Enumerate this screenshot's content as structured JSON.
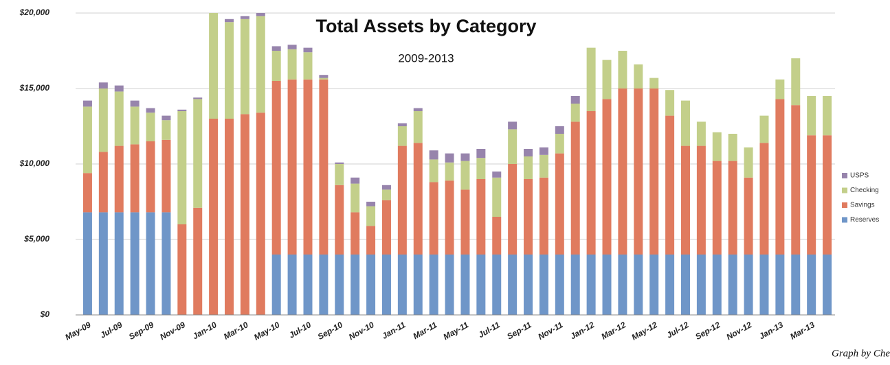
{
  "chart_data": {
    "type": "stacked_bar",
    "title": "Total Assets by Category",
    "subtitle": "2009-2013",
    "credit": "Graph by Che",
    "categories": [
      "May-09",
      null,
      "Jul-09",
      null,
      "Sep-09",
      null,
      "Nov-09",
      null,
      "Jan-10",
      null,
      "Mar-10",
      null,
      "May-10",
      null,
      "Jul-10",
      null,
      "Sep-10",
      null,
      "Nov-10",
      null,
      "Jan-11",
      null,
      "Mar-11",
      null,
      "May-11",
      null,
      "Jul-11",
      null,
      "Sep-11",
      null,
      "Nov-11",
      null,
      "Jan-12",
      null,
      "Mar-12",
      null,
      "May-12",
      null,
      "Jul-12",
      null,
      "Sep-12",
      null,
      "Nov-12",
      null,
      "Jan-13",
      null,
      "Mar-13",
      null
    ],
    "series": [
      {
        "name": "Reserves",
        "color": "#6f96c8",
        "values": [
          6800,
          6800,
          6800,
          6800,
          6800,
          6800,
          0,
          0,
          0,
          0,
          0,
          0,
          4000,
          4000,
          4000,
          4000,
          4000,
          4000,
          4000,
          4000,
          4000,
          4000,
          4000,
          4000,
          4000,
          4000,
          4000,
          4000,
          4000,
          4000,
          4000,
          4000,
          4000,
          4000,
          4000,
          4000,
          4000,
          4000,
          4000,
          4000,
          4000,
          4000,
          4000,
          4000,
          4000,
          4000,
          4000,
          4000
        ]
      },
      {
        "name": "Savings",
        "color": "#e07b5f",
        "values": [
          2600,
          4000,
          4400,
          4500,
          4700,
          4800,
          6000,
          7100,
          13000,
          13000,
          13300,
          13400,
          11500,
          11600,
          11600,
          11600,
          4600,
          2800,
          1900,
          3600,
          7200,
          7400,
          4800,
          4900,
          4300,
          5000,
          2500,
          6000,
          5000,
          5100,
          6700,
          8800,
          9500,
          10300,
          11000,
          11000,
          11000,
          9200,
          7200,
          7200,
          6200,
          6200,
          5100,
          7400,
          10300,
          9900,
          7900,
          7900
        ]
      },
      {
        "name": "Checking",
        "color": "#c3cf8a",
        "values": [
          4400,
          4200,
          3600,
          2500,
          1900,
          1300,
          7500,
          7200,
          7000,
          6400,
          6300,
          6400,
          2000,
          2000,
          1800,
          100,
          1400,
          1900,
          1300,
          700,
          1300,
          2100,
          1500,
          1200,
          1900,
          1400,
          2600,
          2300,
          1500,
          1500,
          1300,
          1200,
          4200,
          2600,
          2500,
          1600,
          700,
          1700,
          3000,
          1600,
          1900,
          1800,
          2000,
          1800,
          1300,
          3100,
          2600,
          2600
        ]
      },
      {
        "name": "USPS",
        "color": "#9784ac",
        "values": [
          400,
          400,
          400,
          400,
          300,
          300,
          100,
          100,
          0,
          200,
          200,
          200,
          300,
          300,
          300,
          200,
          100,
          400,
          300,
          300,
          200,
          200,
          600,
          600,
          500,
          600,
          400,
          500,
          500,
          500,
          500,
          500,
          0,
          0,
          0,
          0,
          0,
          0,
          0,
          0,
          0,
          0,
          0,
          0,
          0,
          0,
          0,
          0
        ]
      }
    ],
    "ylim": [
      0,
      20000
    ],
    "yticks": [
      {
        "value": 0,
        "label": "$0"
      },
      {
        "value": 5000,
        "label": "$5,000"
      },
      {
        "value": 10000,
        "label": "$10,000"
      },
      {
        "value": 15000,
        "label": "$15,000"
      },
      {
        "value": 20000,
        "label": "$20,000"
      }
    ],
    "grid": true,
    "legend": "right"
  }
}
